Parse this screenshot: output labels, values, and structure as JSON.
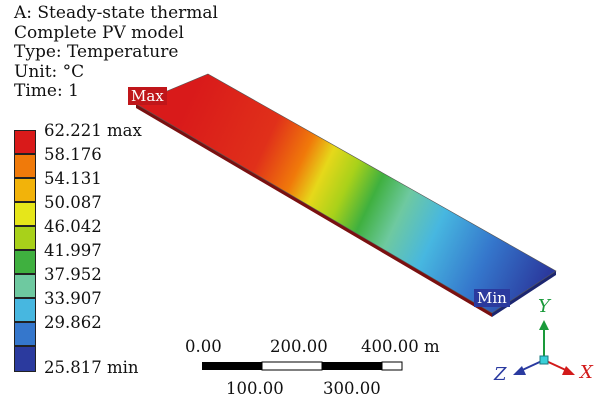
{
  "header": {
    "line1": "A: Steady-state thermal",
    "line2": "Complete PV model",
    "line3": "Type: Temperature",
    "line4": "Unit: °C",
    "line5": "Time: 1"
  },
  "legend": {
    "labels": [
      "62.221 max",
      "58.176",
      "54.131",
      "50.087",
      "46.042",
      "41.997",
      "37.952",
      "33.907",
      "29.862",
      "25.817 min"
    ],
    "colors": [
      "#d91a1a",
      "#f07a0a",
      "#f2b30a",
      "#e6e61a",
      "#a8d11a",
      "#3fb03f",
      "#6ec9a0",
      "#47b7e0",
      "#3577cc",
      "#2b3a9e"
    ]
  },
  "probes": {
    "max": "Max",
    "min": "Min"
  },
  "scale": {
    "top": [
      "0.00",
      "200.00",
      "400.00 m"
    ],
    "bottom": [
      "100.00",
      "300.00"
    ]
  },
  "triad": {
    "x": "X",
    "y": "Y",
    "z": "Z"
  }
}
